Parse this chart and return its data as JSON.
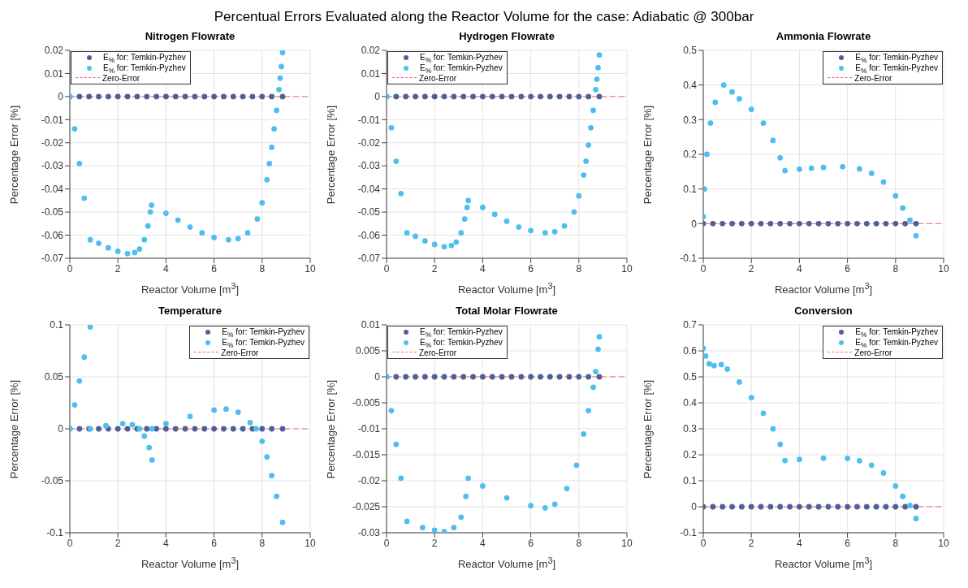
{
  "chart_data": [
    {
      "type": "scatter",
      "title": "Nitrogen Flowrate",
      "annotations": [
        "Percentual Errors Evaluated along the Reactor Volume for the case: Adiabatic @ 300bar"
      ],
      "xlabel": "Reactor Volume [m$^{3}$]",
      "ylabel": "Percentage Error [%]",
      "xlim": [
        0,
        10
      ],
      "xticks": [
        0,
        2,
        4,
        6,
        8,
        10
      ],
      "ylim": [
        -0.07,
        0.02
      ],
      "yticks": [
        -0.07,
        -0.06,
        -0.05,
        -0.04,
        -0.03,
        -0.02,
        -0.01,
        0,
        0.01,
        0.02
      ],
      "grid": true,
      "legend": "top left",
      "marker": "circle",
      "ref_lines": [
        {
          "axis": "y",
          "value": 0,
          "label": "Zero-Error",
          "color": "#ff6666",
          "line_style": "dashed"
        }
      ],
      "series": [
        {
          "name": "E$_{%}$ for: Temkin-Pyzhev",
          "color": "#4e5f99",
          "x": [
            0,
            0.4,
            0.8,
            1.2,
            1.6,
            2,
            2.4,
            2.8,
            3.2,
            3.6,
            4,
            4.4,
            4.8,
            5.2,
            5.6,
            6,
            6.4,
            6.8,
            7.2,
            7.6,
            8,
            8.4,
            8.85
          ],
          "values": [
            0,
            0,
            0,
            0,
            0,
            0,
            0,
            0,
            0,
            0,
            0,
            0,
            0,
            0,
            0,
            0,
            0,
            0,
            0,
            0,
            0,
            0,
            0
          ]
        },
        {
          "name": "E$_{%}$ for: Temkin-Pyzhev",
          "color": "#4dbeee",
          "x": [
            0,
            0.2,
            0.4,
            0.6,
            0.85,
            1.2,
            1.6,
            2,
            2.4,
            2.7,
            2.9,
            3.1,
            3.25,
            3.35,
            3.4,
            4,
            4.5,
            5,
            5.5,
            6,
            6.6,
            7,
            7.4,
            7.8,
            8,
            8.2,
            8.3,
            8.4,
            8.5,
            8.6,
            8.7,
            8.75,
            8.8,
            8.85
          ],
          "values": [
            0,
            -0.014,
            -0.029,
            -0.044,
            -0.062,
            -0.0635,
            -0.0655,
            -0.067,
            -0.068,
            -0.0675,
            -0.066,
            -0.062,
            -0.056,
            -0.05,
            -0.047,
            -0.0505,
            -0.0535,
            -0.0565,
            -0.059,
            -0.061,
            -0.062,
            -0.0615,
            -0.059,
            -0.053,
            -0.046,
            -0.036,
            -0.029,
            -0.022,
            -0.014,
            -0.006,
            0.003,
            0.008,
            0.013,
            0.019
          ]
        }
      ]
    },
    {
      "type": "scatter",
      "title": "Hydrogen Flowrate",
      "xlabel": "Reactor Volume [m$^{3}$]",
      "ylabel": "Percentage Error [%]",
      "xlim": [
        0,
        10
      ],
      "xticks": [
        0,
        2,
        4,
        6,
        8,
        10
      ],
      "ylim": [
        -0.07,
        0.02
      ],
      "yticks": [
        -0.07,
        -0.06,
        -0.05,
        -0.04,
        -0.03,
        -0.02,
        -0.01,
        0,
        0.01,
        0.02
      ],
      "grid": true,
      "legend": "top left",
      "marker": "circle",
      "ref_lines": [
        {
          "axis": "y",
          "value": 0,
          "label": "Zero-Error",
          "color": "#ff6666",
          "line_style": "dashed"
        }
      ],
      "series": [
        {
          "name": "E$_{%}$ for: Temkin-Pyzhev",
          "color": "#4e5f99",
          "x": [
            0,
            0.4,
            0.8,
            1.2,
            1.6,
            2,
            2.4,
            2.8,
            3.2,
            3.6,
            4,
            4.4,
            4.8,
            5.2,
            5.6,
            6,
            6.4,
            6.8,
            7.2,
            7.6,
            8,
            8.4,
            8.85
          ],
          "values": [
            0,
            0,
            0,
            0,
            0,
            0,
            0,
            0,
            0,
            0,
            0,
            0,
            0,
            0,
            0,
            0,
            0,
            0,
            0,
            0,
            0,
            0,
            0
          ]
        },
        {
          "name": "E$_{%}$ for: Temkin-Pyzhev",
          "color": "#4dbeee",
          "x": [
            0,
            0.2,
            0.4,
            0.6,
            0.85,
            1.2,
            1.6,
            2,
            2.4,
            2.7,
            2.9,
            3.1,
            3.25,
            3.35,
            3.4,
            4,
            4.5,
            5,
            5.5,
            6,
            6.6,
            7,
            7.4,
            7.8,
            8,
            8.2,
            8.3,
            8.4,
            8.5,
            8.6,
            8.7,
            8.75,
            8.8,
            8.85
          ],
          "values": [
            0,
            -0.0135,
            -0.028,
            -0.042,
            -0.059,
            -0.0605,
            -0.0625,
            -0.064,
            -0.065,
            -0.0645,
            -0.063,
            -0.059,
            -0.053,
            -0.048,
            -0.045,
            -0.048,
            -0.051,
            -0.054,
            -0.0565,
            -0.058,
            -0.059,
            -0.0585,
            -0.056,
            -0.05,
            -0.043,
            -0.034,
            -0.028,
            -0.021,
            -0.0135,
            -0.006,
            0.003,
            0.0075,
            0.0125,
            0.018
          ]
        }
      ]
    },
    {
      "type": "scatter",
      "title": "Ammonia Flowrate",
      "xlabel": "Reactor Volume [m$^{3}$]",
      "ylabel": "Percentage Error [%]",
      "xlim": [
        0,
        10
      ],
      "xticks": [
        0,
        2,
        4,
        6,
        8,
        10
      ],
      "ylim": [
        -0.1,
        0.5
      ],
      "yticks": [
        -0.1,
        0,
        0.1,
        0.2,
        0.3,
        0.4,
        0.5
      ],
      "grid": true,
      "legend": "top right",
      "marker": "circle",
      "ref_lines": [
        {
          "axis": "y",
          "value": 0,
          "label": "Zero-Error",
          "color": "#ff6666",
          "line_style": "dashed"
        }
      ],
      "series": [
        {
          "name": "E$_{%}$ for: Temkin-Pyzhev",
          "color": "#4e5f99",
          "x": [
            0,
            0.4,
            0.8,
            1.2,
            1.6,
            2,
            2.4,
            2.8,
            3.2,
            3.6,
            4,
            4.4,
            4.8,
            5.2,
            5.6,
            6,
            6.4,
            6.8,
            7.2,
            7.6,
            8,
            8.4,
            8.85
          ],
          "values": [
            0,
            0,
            0,
            0,
            0,
            0,
            0,
            0,
            0,
            0,
            0,
            0,
            0,
            0,
            0,
            0,
            0,
            0,
            0,
            0,
            0,
            0,
            0
          ]
        },
        {
          "name": "E$_{%}$ for: Temkin-Pyzhev",
          "color": "#4dbeee",
          "x": [
            0,
            0.05,
            0.15,
            0.3,
            0.5,
            0.85,
            1.2,
            1.5,
            2,
            2.5,
            2.9,
            3.2,
            3.4,
            4,
            4.5,
            5,
            5.8,
            6.5,
            7,
            7.5,
            8,
            8.3,
            8.6,
            8.85
          ],
          "values": [
            0.02,
            0.1,
            0.2,
            0.29,
            0.35,
            0.4,
            0.38,
            0.36,
            0.33,
            0.29,
            0.24,
            0.19,
            0.153,
            0.157,
            0.16,
            0.162,
            0.164,
            0.158,
            0.145,
            0.12,
            0.08,
            0.045,
            0.01,
            -0.035
          ]
        }
      ]
    },
    {
      "type": "scatter",
      "title": "Temperature",
      "xlabel": "Reactor Volume [m$^{3}$]",
      "ylabel": "Percentage Error [%]",
      "xlim": [
        0,
        10
      ],
      "xticks": [
        0,
        2,
        4,
        6,
        8,
        10
      ],
      "ylim": [
        -0.1,
        0.1
      ],
      "yticks": [
        -0.1,
        -0.05,
        0,
        0.05,
        0.1
      ],
      "grid": true,
      "legend": "top right",
      "marker": "circle",
      "ref_lines": [
        {
          "axis": "y",
          "value": 0,
          "label": "Zero-Error",
          "color": "#ff6666",
          "line_style": "dashed"
        }
      ],
      "series": [
        {
          "name": "E$_{%}$ for: Temkin-Pyzhev",
          "color": "#4e5f99",
          "x": [
            0,
            0.4,
            0.8,
            1.2,
            1.6,
            2,
            2.4,
            2.8,
            3.2,
            3.6,
            4,
            4.4,
            4.8,
            5.2,
            5.6,
            6,
            6.4,
            6.8,
            7.2,
            7.6,
            8,
            8.4,
            8.85
          ],
          "values": [
            0,
            0,
            0,
            0,
            0,
            0,
            0,
            0,
            0,
            0,
            0,
            0,
            0,
            0,
            0,
            0,
            0,
            0,
            0,
            0,
            0,
            0,
            0
          ]
        },
        {
          "name": "E$_{%}$ for: Temkin-Pyzhev",
          "color": "#4dbeee",
          "x": [
            0,
            0.2,
            0.4,
            0.6,
            0.85,
            0.85,
            1.5,
            2.2,
            2.6,
            2.9,
            3.1,
            3.3,
            3.42,
            3.42,
            4,
            5,
            6,
            6.5,
            7,
            7.5,
            7.75,
            8,
            8.2,
            8.4,
            8.6,
            8.85
          ],
          "values": [
            0,
            0.023,
            0.046,
            0.069,
            0.098,
            0,
            0.003,
            0.005,
            0.004,
            0,
            -0.007,
            -0.018,
            -0.03,
            0,
            0.005,
            0.012,
            0.018,
            0.019,
            0.016,
            0.006,
            0,
            -0.012,
            -0.027,
            -0.045,
            -0.065,
            -0.09
          ]
        }
      ]
    },
    {
      "type": "scatter",
      "title": "Total Molar Flowrate",
      "xlabel": "Reactor Volume [m$^{3}$]",
      "ylabel": "Percentage Error [%]",
      "xlim": [
        0,
        10
      ],
      "xticks": [
        0,
        2,
        4,
        6,
        8,
        10
      ],
      "ylim": [
        -0.03,
        0.01
      ],
      "yticks": [
        -0.03,
        -0.025,
        -0.02,
        -0.015,
        -0.01,
        -0.005,
        0,
        0.005,
        0.01
      ],
      "grid": true,
      "legend": "top left",
      "marker": "circle",
      "ref_lines": [
        {
          "axis": "y",
          "value": 0,
          "label": "Zero-Error",
          "color": "#ff6666",
          "line_style": "dashed"
        }
      ],
      "series": [
        {
          "name": "E$_{%}$ for: Temkin-Pyzhev",
          "color": "#4e5f99",
          "x": [
            0,
            0.4,
            0.8,
            1.2,
            1.6,
            2,
            2.4,
            2.8,
            3.2,
            3.6,
            4,
            4.4,
            4.8,
            5.2,
            5.6,
            6,
            6.4,
            6.8,
            7.2,
            7.6,
            8,
            8.4,
            8.85
          ],
          "values": [
            0,
            0,
            0,
            0,
            0,
            0,
            0,
            0,
            0,
            0,
            0,
            0,
            0,
            0,
            0,
            0,
            0,
            0,
            0,
            0,
            0,
            0,
            0
          ]
        },
        {
          "name": "E$_{%}$ for: Temkin-Pyzhev",
          "color": "#4dbeee",
          "x": [
            0,
            0.2,
            0.4,
            0.6,
            0.85,
            1.5,
            2,
            2.4,
            2.8,
            3.1,
            3.3,
            3.4,
            4,
            5,
            6,
            6.6,
            7,
            7.5,
            7.9,
            8.2,
            8.4,
            8.6,
            8.7,
            8.8,
            8.85
          ],
          "values": [
            0,
            -0.0065,
            -0.013,
            -0.0195,
            -0.0278,
            -0.029,
            -0.0295,
            -0.0298,
            -0.029,
            -0.027,
            -0.023,
            -0.0195,
            -0.021,
            -0.0233,
            -0.0248,
            -0.0252,
            -0.0245,
            -0.0215,
            -0.017,
            -0.011,
            -0.0065,
            -0.002,
            0.001,
            0.0053,
            0.0077
          ]
        }
      ]
    },
    {
      "type": "scatter",
      "title": "Conversion",
      "xlabel": "Reactor Volume [m$^{3}$]",
      "ylabel": "Percentage Error [%]",
      "xlim": [
        0,
        10
      ],
      "xticks": [
        0,
        2,
        4,
        6,
        8,
        10
      ],
      "ylim": [
        -0.1,
        0.7
      ],
      "yticks": [
        -0.1,
        0,
        0.1,
        0.2,
        0.3,
        0.4,
        0.5,
        0.6,
        0.7
      ],
      "grid": true,
      "legend": "top right",
      "marker": "circle",
      "ref_lines": [
        {
          "axis": "y",
          "value": 0,
          "label": "Zero-Error",
          "color": "#ff6666",
          "line_style": "dashed"
        }
      ],
      "series": [
        {
          "name": "E$_{%}$ for: Temkin-Pyzhev",
          "color": "#4e5f99",
          "x": [
            0,
            0.4,
            0.8,
            1.2,
            1.6,
            2,
            2.4,
            2.8,
            3.2,
            3.6,
            4,
            4.4,
            4.8,
            5.2,
            5.6,
            6,
            6.4,
            6.8,
            7.2,
            7.6,
            8,
            8.4,
            8.85
          ],
          "values": [
            0,
            0,
            0,
            0,
            0,
            0,
            0,
            0,
            0,
            0,
            0,
            0,
            0,
            0,
            0,
            0,
            0,
            0,
            0,
            0,
            0,
            0,
            0
          ]
        },
        {
          "name": "E$_{%}$ for: Temkin-Pyzhev",
          "color": "#4dbeee",
          "x": [
            0,
            0.1,
            0.25,
            0.45,
            0.75,
            1,
            1.5,
            2,
            2.5,
            2.9,
            3.2,
            3.4,
            4,
            5,
            6,
            6.5,
            7,
            7.5,
            8,
            8.3,
            8.6,
            8.85
          ],
          "values": [
            0.61,
            0.58,
            0.55,
            0.543,
            0.547,
            0.53,
            0.48,
            0.42,
            0.36,
            0.3,
            0.24,
            0.178,
            0.182,
            0.187,
            0.186,
            0.177,
            0.16,
            0.13,
            0.08,
            0.04,
            0.005,
            -0.045
          ]
        }
      ]
    }
  ]
}
